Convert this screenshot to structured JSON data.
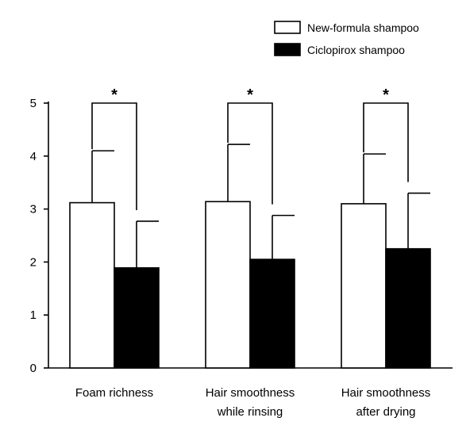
{
  "chart_data": {
    "type": "bar",
    "title": "",
    "xlabel": "",
    "ylabel": "",
    "ylim": [
      0,
      5
    ],
    "yticks": [
      "0",
      "1",
      "2",
      "3",
      "4",
      "5"
    ],
    "grid": false,
    "legend_position": "top-right",
    "categories": [
      [
        "Foam richness"
      ],
      [
        "Hair smoothness",
        "while rinsing"
      ],
      [
        "Hair smoothness",
        "after drying"
      ]
    ],
    "series": [
      {
        "name": "New-formula shampoo",
        "color": "#ffffff",
        "values": [
          3.12,
          3.14,
          3.1
        ],
        "errors": [
          0.98,
          1.08,
          0.94
        ]
      },
      {
        "name": "Ciclopirox shampoo",
        "color": "#000000",
        "values": [
          1.89,
          2.05,
          2.25
        ],
        "errors": [
          0.88,
          0.83,
          1.05
        ]
      }
    ],
    "significance": [
      {
        "category_index": 0,
        "label": "*"
      },
      {
        "category_index": 1,
        "label": "*"
      },
      {
        "category_index": 2,
        "label": "*"
      }
    ]
  }
}
